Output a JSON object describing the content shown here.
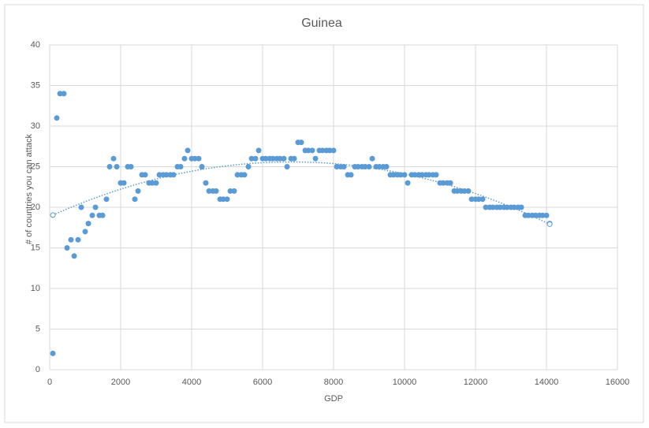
{
  "chart_data": {
    "type": "scatter",
    "title": "Guinea",
    "x_label": "GDP",
    "y_label": "# of countries you can attack",
    "xlim": [
      0,
      16000
    ],
    "xticks": [
      0,
      2000,
      4000,
      6000,
      8000,
      10000,
      12000,
      14000,
      16000
    ],
    "ylim": [
      0,
      40
    ],
    "yticks": [
      0,
      5,
      10,
      15,
      20,
      25,
      30,
      35,
      40
    ],
    "grid": true,
    "trendline": "polynomial",
    "series": [
      {
        "color": "#5b9bd5",
        "x": [
          90,
          200,
          290,
          400,
          490,
          600,
          690,
          800,
          890,
          1000,
          1090,
          1200,
          1290,
          1400,
          1490,
          1600,
          1690,
          1800,
          1890,
          2000,
          2090,
          2200,
          2290,
          2400,
          2490,
          2600,
          2690,
          2800,
          2890,
          3000,
          3090,
          3200,
          3290,
          3400,
          3490,
          3600,
          3690,
          3800,
          3890,
          4000,
          4090,
          4200,
          4290,
          4400,
          4490,
          4600,
          4690,
          4800,
          4890,
          5000,
          5090,
          5200,
          5290,
          5400,
          5490,
          5600,
          5690,
          5800,
          5890,
          6000,
          6090,
          6200,
          6290,
          6400,
          6490,
          6600,
          6690,
          6800,
          6890,
          7000,
          7090,
          7200,
          7290,
          7400,
          7490,
          7600,
          7690,
          7800,
          7890,
          8000,
          8090,
          8200,
          8290,
          8400,
          8490,
          8600,
          8690,
          8800,
          8890,
          9000,
          9090,
          9200,
          9290,
          9400,
          9490,
          9600,
          9690,
          9800,
          9890,
          10000,
          10090,
          10200,
          10290,
          10400,
          10490,
          10600,
          10690,
          10800,
          10890,
          11000,
          11090,
          11200,
          11290,
          11400,
          11490,
          11600,
          11690,
          11800,
          11890,
          12000,
          12090,
          12200,
          12290,
          12400,
          12490,
          12600,
          12690,
          12800,
          12890,
          13000,
          13090,
          13200,
          13290,
          13400,
          13490,
          13600,
          13690,
          13800,
          13890,
          14000,
          14090
        ],
        "values": [
          2,
          31,
          34,
          34,
          15,
          16,
          14,
          16,
          20,
          17,
          18,
          19,
          20,
          19,
          19,
          21,
          25,
          26,
          25,
          23,
          23,
          25,
          25,
          21,
          22,
          24,
          24,
          23,
          23,
          23,
          24,
          24,
          24,
          24,
          24,
          25,
          25,
          26,
          27,
          26,
          26,
          26,
          25,
          23,
          22,
          22,
          22,
          21,
          21,
          21,
          22,
          22,
          24,
          24,
          24,
          25,
          26,
          26,
          27,
          26,
          26,
          26,
          26,
          26,
          26,
          26,
          25,
          26,
          26,
          28,
          28,
          27,
          27,
          27,
          26,
          27,
          27,
          27,
          27,
          27,
          25,
          25,
          25,
          24,
          24,
          25,
          25,
          25,
          25,
          25,
          26,
          25,
          25,
          25,
          25,
          24,
          24,
          24,
          24,
          24,
          23,
          24,
          24,
          24,
          24,
          24,
          24,
          24,
          24,
          23,
          23,
          23,
          23,
          22,
          22,
          22,
          22,
          22,
          21,
          21,
          21,
          21,
          20,
          20,
          20,
          20,
          20,
          20,
          20,
          20,
          20,
          20,
          20,
          19,
          19,
          19,
          19,
          19,
          19,
          19,
          18
        ]
      }
    ]
  }
}
